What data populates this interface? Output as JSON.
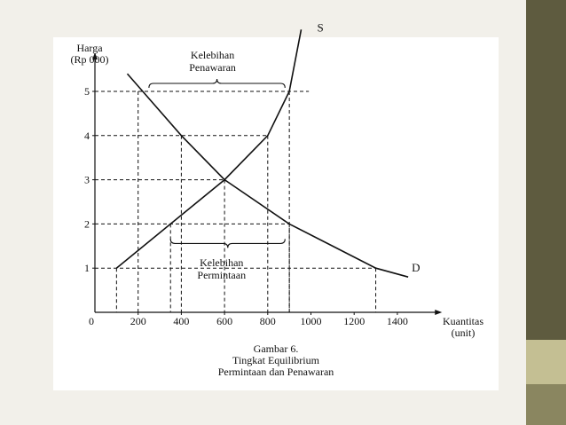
{
  "colors": {
    "ink": "#111111",
    "paper": "#ffffff",
    "accent_dark": "#5e5b3f",
    "accent_light": "#c4bf93"
  },
  "chart_data": {
    "type": "line",
    "ylabel": [
      "Harga",
      "(Rp 000)"
    ],
    "xlabel": [
      "Kuantitas",
      "(unit)"
    ],
    "xlim": [
      0,
      1500
    ],
    "ylim": [
      0,
      5.6
    ],
    "x_ticks": [
      0,
      200,
      400,
      600,
      800,
      1000,
      1200,
      1400
    ],
    "y_ticks": [
      1,
      2,
      3,
      4,
      5
    ],
    "series": [
      {
        "name": "S",
        "points": [
          [
            100,
            1
          ],
          [
            600,
            3
          ],
          [
            800,
            4
          ],
          [
            900,
            5
          ],
          [
            955,
            6.4
          ]
        ]
      },
      {
        "name": "D",
        "points": [
          [
            150,
            5.4
          ],
          [
            400,
            4
          ],
          [
            600,
            3
          ],
          [
            900,
            2
          ],
          [
            1300,
            1
          ],
          [
            1450,
            0.8
          ]
        ]
      }
    ],
    "reference_points": [
      {
        "x": 200,
        "y": 5
      },
      {
        "x": 900,
        "y": 5
      },
      {
        "x": 400,
        "y": 4
      },
      {
        "x": 800,
        "y": 4
      },
      {
        "x": 600,
        "y": 3
      },
      {
        "x": 350,
        "y": 2
      },
      {
        "x": 900,
        "y": 2
      },
      {
        "x": 100,
        "y": 1
      },
      {
        "x": 1300,
        "y": 1
      }
    ],
    "annotations": [
      {
        "lines": [
          "Kelebihan",
          "Penawaran"
        ],
        "from_x": 250,
        "to_x": 880,
        "y": 5
      },
      {
        "lines": [
          "Kelebihan",
          "Permintaan"
        ],
        "from_x": 350,
        "to_x": 880,
        "y": 2
      }
    ],
    "caption": [
      "Gambar 6.",
      "Tingkat Equilibrium",
      "Permintaan dan Penawaran"
    ]
  }
}
